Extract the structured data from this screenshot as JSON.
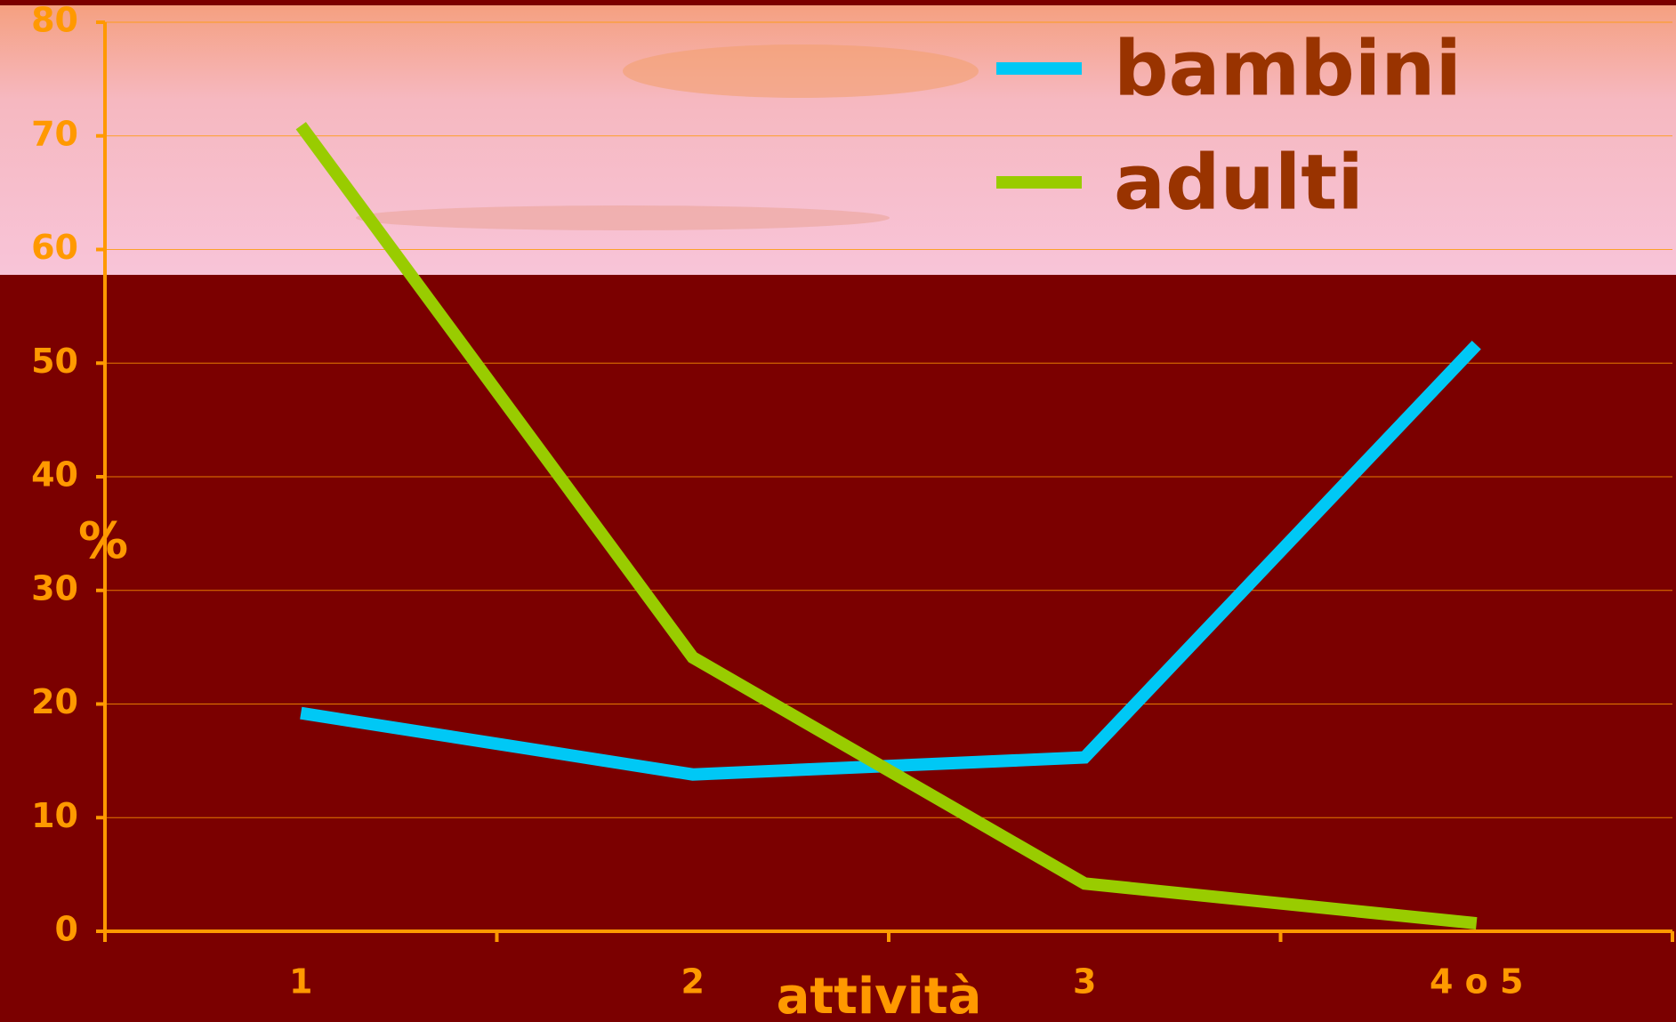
{
  "chart_data": {
    "type": "line",
    "categories": [
      "1",
      "2",
      "3",
      "4 o 5"
    ],
    "series": [
      {
        "name": "bambini",
        "color": "#00c8f5",
        "values": [
          19.2,
          13.8,
          15.3,
          51.6
        ]
      },
      {
        "name": "adulti",
        "color": "#99cc00",
        "values": [
          70.9,
          24.1,
          4.2,
          0.7
        ]
      }
    ],
    "ylim": [
      0,
      80
    ],
    "yticks": [
      0,
      10,
      20,
      30,
      40,
      50,
      60,
      70,
      80
    ],
    "y_label": "%",
    "x_label": "attività",
    "grid": true,
    "legend": "top-right"
  }
}
